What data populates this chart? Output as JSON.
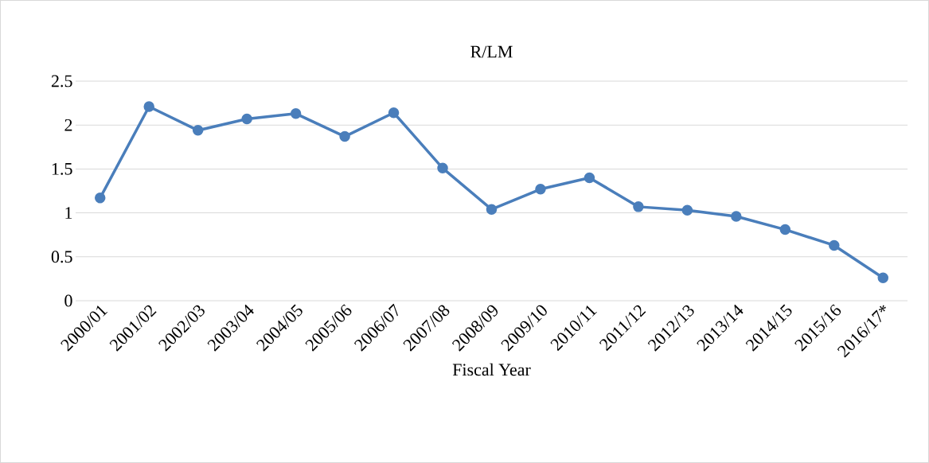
{
  "chart_data": {
    "type": "line",
    "title": "R/LM",
    "xlabel": "Fiscal Year",
    "categories": [
      "2000/01",
      "2001/02",
      "2002/03",
      "2003/04",
      "2004/05",
      "2005/06",
      "2006/07",
      "2007/08",
      "2008/09",
      "2009/10",
      "2010/11",
      "2011/12",
      "2012/13",
      "2013/14",
      "2014/15",
      "2015/16",
      "2016/17*"
    ],
    "series": [
      {
        "color": "#4a7ebb",
        "values": [
          1.17,
          2.21,
          1.94,
          2.07,
          2.13,
          1.87,
          2.14,
          1.51,
          1.04,
          1.27,
          1.4,
          1.07,
          1.03,
          0.96,
          0.81,
          0.63,
          0.26
        ]
      }
    ],
    "ylim": [
      0,
      2.5
    ],
    "yticks": [
      0,
      0.5,
      1,
      1.5,
      2,
      2.5
    ],
    "grid": "y",
    "marker": "circle"
  }
}
